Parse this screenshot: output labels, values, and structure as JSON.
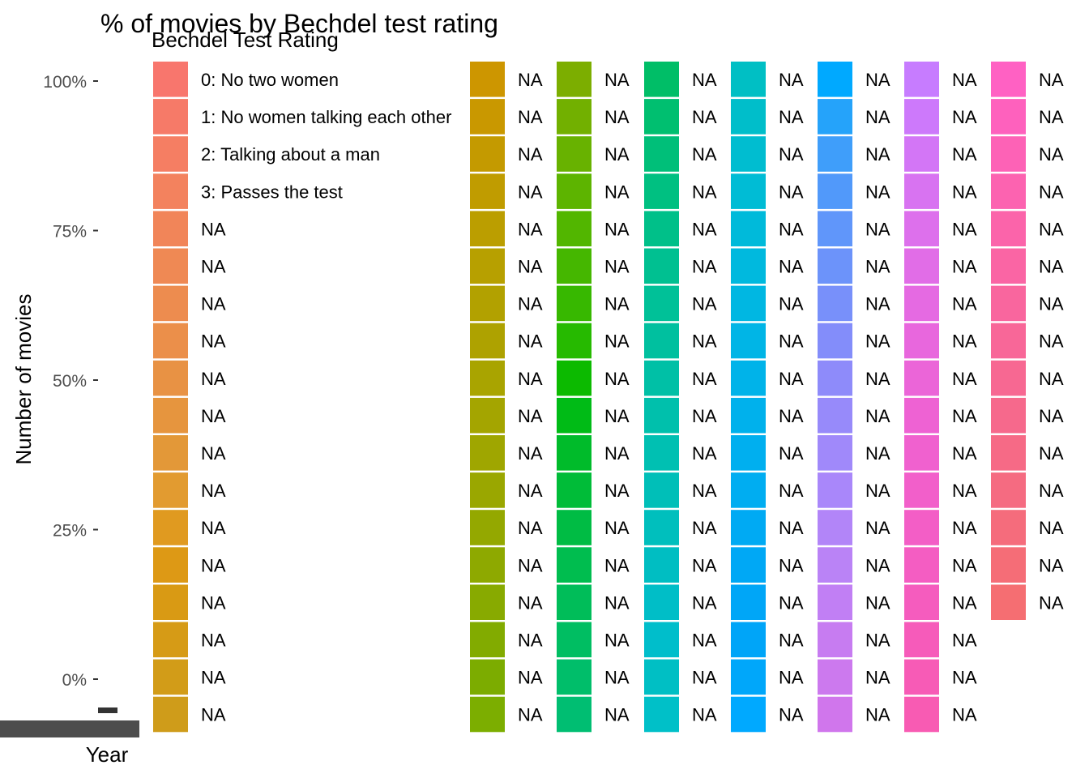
{
  "chart_data": {
    "type": "bar",
    "title": "% of movies by Bechdel test rating",
    "xlabel": "Year",
    "ylabel": "Number of movies",
    "y_ticks": [
      "100%",
      "75%",
      "50%",
      "25%",
      "0%"
    ],
    "y_tick_values": [
      1.0,
      0.75,
      0.5,
      0.25,
      0.0
    ],
    "ylim": [
      0,
      1
    ],
    "grid": false,
    "legend": {
      "title": "Bechdel Test Rating",
      "position": "top-right",
      "columns": [
        {
          "labels": [
            "0: No two women",
            "1: No women talking each other",
            "2: Talking about a man",
            "3: Passes the test",
            "NA",
            "NA",
            "NA",
            "NA",
            "NA",
            "NA",
            "NA",
            "NA",
            "NA",
            "NA",
            "NA",
            "NA",
            "NA",
            "NA"
          ],
          "colors": [
            "#F8766D",
            "#F67A68",
            "#F57E63",
            "#F3825E",
            "#F18559",
            "#EF8954",
            "#ED8C4F",
            "#EB8F4A",
            "#E89244",
            "#E6953E",
            "#E39838",
            "#E29B30",
            "#E09A20",
            "#DD9915",
            "#D99A14",
            "#D69B16",
            "#D29C18",
            "#CF9C1A"
          ]
        },
        {
          "labels": [
            "NA",
            "NA",
            "NA",
            "NA",
            "NA",
            "NA",
            "NA",
            "NA",
            "NA",
            "NA",
            "NA",
            "NA",
            "NA",
            "NA",
            "NA",
            "NA",
            "NA",
            "NA"
          ],
          "colors": [
            "#CD9600",
            "#C99800",
            "#C49A00",
            "#C09C00",
            "#BB9E00",
            "#B7A000",
            "#B2A100",
            "#AEA200",
            "#A9A400",
            "#A4A500",
            "#9FA600",
            "#9AA700",
            "#94A800",
            "#8EA900",
            "#88AA00",
            "#82AB00",
            "#7CAC00",
            "#7CAE00"
          ]
        },
        {
          "labels": [
            "NA",
            "NA",
            "NA",
            "NA",
            "NA",
            "NA",
            "NA",
            "NA",
            "NA",
            "NA",
            "NA",
            "NA",
            "NA",
            "NA",
            "NA",
            "NA",
            "NA",
            "NA"
          ],
          "colors": [
            "#7CAE00",
            "#72B000",
            "#68B200",
            "#5DB400",
            "#52B600",
            "#45B700",
            "#37B800",
            "#26BA00",
            "#0CBA00",
            "#00BB16",
            "#00BB2A",
            "#00BC38",
            "#00BC44",
            "#00BD4F",
            "#00BD59",
            "#00BE62",
            "#00BE6A",
            "#00BE72"
          ]
        },
        {
          "labels": [
            "NA",
            "NA",
            "NA",
            "NA",
            "NA",
            "NA",
            "NA",
            "NA",
            "NA",
            "NA",
            "NA",
            "NA",
            "NA",
            "NA",
            "NA",
            "NA",
            "NA",
            "NA"
          ],
          "colors": [
            "#00BE67",
            "#00BF70",
            "#00BF79",
            "#00C081",
            "#00C089",
            "#00C091",
            "#00C198",
            "#00C09F",
            "#00C0A6",
            "#00C0AC",
            "#00C0B2",
            "#00BFB8",
            "#00BFBD",
            "#00BEC2",
            "#00BEC7",
            "#00BECB",
            "#00BFC4",
            "#00C0C8"
          ]
        },
        {
          "labels": [
            "NA",
            "NA",
            "NA",
            "NA",
            "NA",
            "NA",
            "NA",
            "NA",
            "NA",
            "NA",
            "NA",
            "NA",
            "NA",
            "NA",
            "NA",
            "NA",
            "NA",
            "NA"
          ],
          "colors": [
            "#00BFC4",
            "#00BECA",
            "#00BDD0",
            "#00BCD5",
            "#00BADA",
            "#00B9DE",
            "#00B7E2",
            "#00B5E6",
            "#00B3E9",
            "#00B1EC",
            "#00AFEF",
            "#00ADF1",
            "#00AAF3",
            "#00A8F5",
            "#00A6F7",
            "#00A5F8",
            "#00A7FA",
            "#00A9FF"
          ]
        },
        {
          "labels": [
            "NA",
            "NA",
            "NA",
            "NA",
            "NA",
            "NA",
            "NA",
            "NA",
            "NA",
            "NA",
            "NA",
            "NA",
            "NA",
            "NA",
            "NA",
            "NA",
            "NA",
            "NA"
          ],
          "colors": [
            "#00A9FF",
            "#25A3FA",
            "#3F9EFA",
            "#5199FA",
            "#6096FA",
            "#6C93FA",
            "#7890FA",
            "#838DFA",
            "#8E8BFA",
            "#978AFA",
            "#A089FA",
            "#A987FA",
            "#B285F8",
            "#BA83F6",
            "#C17FF4",
            "#C77CF1",
            "#CC79EE",
            "#D076EC"
          ]
        },
        {
          "labels": [
            "NA",
            "NA",
            "NA",
            "NA",
            "NA",
            "NA",
            "NA",
            "NA",
            "NA",
            "NA",
            "NA",
            "NA",
            "NA",
            "NA",
            "NA",
            "NA",
            "NA",
            "NA"
          ],
          "colors": [
            "#C77CFF",
            "#CD79FB",
            "#D376F6",
            "#D873F1",
            "#DD70EC",
            "#E16DE7",
            "#E56AE2",
            "#E867DD",
            "#EB65D8",
            "#EE62D3",
            "#F061CF",
            "#F25FCA",
            "#F35EC6",
            "#F45DC2",
            "#F55CBE",
            "#F65BBA",
            "#F75BB6",
            "#F85BB3"
          ]
        },
        {
          "labels": [
            "NA",
            "NA",
            "NA",
            "NA",
            "NA",
            "NA",
            "NA",
            "NA",
            "NA",
            "NA",
            "NA",
            "NA",
            "NA",
            "NA",
            "NA"
          ],
          "colors": [
            "#FF61C3",
            "#FE61BD",
            "#FD62B6",
            "#FC63B0",
            "#FB64AA",
            "#FA65A4",
            "#F9669E",
            "#F86798",
            "#F76892",
            "#F6698C",
            "#F66A86",
            "#F56B81",
            "#F56C7C",
            "#F56D77",
            "#F56E72"
          ]
        }
      ]
    }
  }
}
